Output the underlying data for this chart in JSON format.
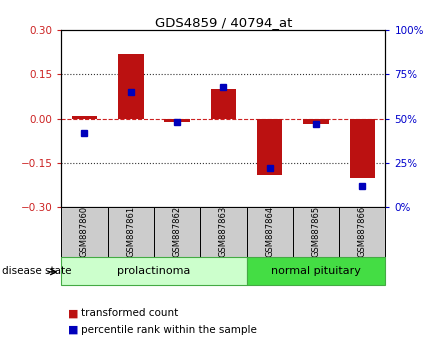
{
  "title": "GDS4859 / 40794_at",
  "samples": [
    "GSM887860",
    "GSM887861",
    "GSM887862",
    "GSM887863",
    "GSM887864",
    "GSM887865",
    "GSM887866"
  ],
  "transformed_count": [
    0.01,
    0.22,
    -0.01,
    0.1,
    -0.19,
    -0.02,
    -0.2
  ],
  "percentile_rank": [
    42,
    65,
    48,
    68,
    22,
    47,
    12
  ],
  "ylim_left": [
    -0.3,
    0.3
  ],
  "ylim_right": [
    0,
    100
  ],
  "yticks_left": [
    -0.3,
    -0.15,
    0,
    0.15,
    0.3
  ],
  "yticks_right": [
    0,
    25,
    50,
    75,
    100
  ],
  "disease_groups": [
    {
      "label": "prolactinoma",
      "indices": [
        0,
        1,
        2,
        3
      ],
      "color": "#CCFFCC",
      "border_color": "#44AA44"
    },
    {
      "label": "normal pituitary",
      "indices": [
        4,
        5,
        6
      ],
      "color": "#44DD44",
      "border_color": "#44AA44"
    }
  ],
  "sample_box_color": "#CCCCCC",
  "bar_color": "#BB1111",
  "dot_color": "#0000BB",
  "zero_line_color": "#CC2222",
  "dot_line_color": "#333333",
  "label_color_left": "#CC2222",
  "label_color_right": "#0000CC",
  "legend_bar_label": "transformed count",
  "legend_dot_label": "percentile rank within the sample",
  "disease_state_label": "disease state"
}
